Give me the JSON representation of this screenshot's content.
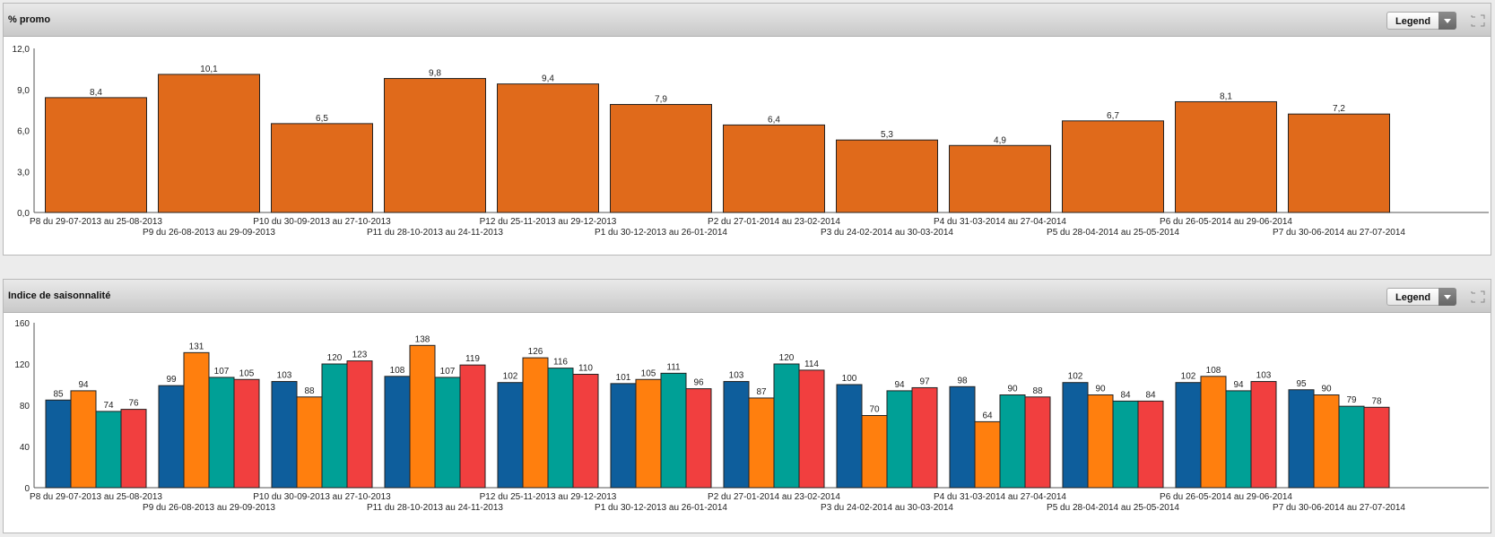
{
  "colors": {
    "promo": "#E06A1B",
    "series": [
      "#0E5E9C",
      "#FF7F0E",
      "#00A096",
      "#F13F3F"
    ]
  },
  "panels": [
    {
      "title": "% promo",
      "legend_label": "Legend"
    },
    {
      "title": "Indice de saisonnalité",
      "legend_label": "Legend"
    }
  ],
  "chart_data": [
    {
      "type": "bar",
      "title": "% promo",
      "categories": [
        "P8 du 29-07-2013 au 25-08-2013",
        "P9 du 26-08-2013 au 29-09-2013",
        "P10 du 30-09-2013 au 27-10-2013",
        "P11 du 28-10-2013 au 24-11-2013",
        "P12 du 25-11-2013 au 29-12-2013",
        "P1 du 30-12-2013 au 26-01-2014",
        "P2 du 27-01-2014 au 23-02-2014",
        "P3 du 24-02-2014 au 30-03-2014",
        "P4 du 31-03-2014 au 27-04-2014",
        "P5 du 28-04-2014 au 25-05-2014",
        "P6 du 26-05-2014 au 29-06-2014",
        "P7 du 30-06-2014 au 27-07-2014"
      ],
      "values": [
        8.4,
        10.1,
        6.5,
        9.8,
        9.4,
        7.9,
        6.4,
        5.3,
        4.9,
        6.7,
        8.1,
        7.2
      ],
      "value_labels": [
        "8,4",
        "10,1",
        "6,5",
        "9,8",
        "9,4",
        "7,9",
        "6,4",
        "5,3",
        "4,9",
        "6,7",
        "8,1",
        "7,2"
      ],
      "yticks": [
        "0,0",
        "3,0",
        "6,0",
        "9,0",
        "12,0"
      ],
      "ylim": [
        0,
        12
      ],
      "grid": false
    },
    {
      "type": "bar",
      "title": "Indice de saisonnalité",
      "categories": [
        "P8 du 29-07-2013 au 25-08-2013",
        "P9 du 26-08-2013 au 29-09-2013",
        "P10 du 30-09-2013 au 27-10-2013",
        "P11 du 28-10-2013 au 24-11-2013",
        "P12 du 25-11-2013 au 29-12-2013",
        "P1 du 30-12-2013 au 26-01-2014",
        "P2 du 27-01-2014 au 23-02-2014",
        "P3 du 24-02-2014 au 30-03-2014",
        "P4 du 31-03-2014 au 27-04-2014",
        "P5 du 28-04-2014 au 25-05-2014",
        "P6 du 26-05-2014 au 29-06-2014",
        "P7 du 30-06-2014 au 27-07-2014"
      ],
      "series": [
        {
          "values": [
            85,
            99,
            103,
            108,
            102,
            101,
            103,
            100,
            98,
            102,
            102,
            95
          ]
        },
        {
          "values": [
            94,
            131,
            88,
            138,
            126,
            105,
            87,
            70,
            64,
            90,
            108,
            90
          ]
        },
        {
          "values": [
            74,
            107,
            120,
            107,
            116,
            111,
            120,
            94,
            90,
            84,
            94,
            79
          ]
        },
        {
          "values": [
            76,
            105,
            123,
            119,
            110,
            96,
            114,
            97,
            88,
            84,
            103,
            78
          ]
        }
      ],
      "yticks": [
        "0",
        "40",
        "80",
        "120",
        "160"
      ],
      "ylim": [
        0,
        160
      ],
      "grid": false
    }
  ]
}
